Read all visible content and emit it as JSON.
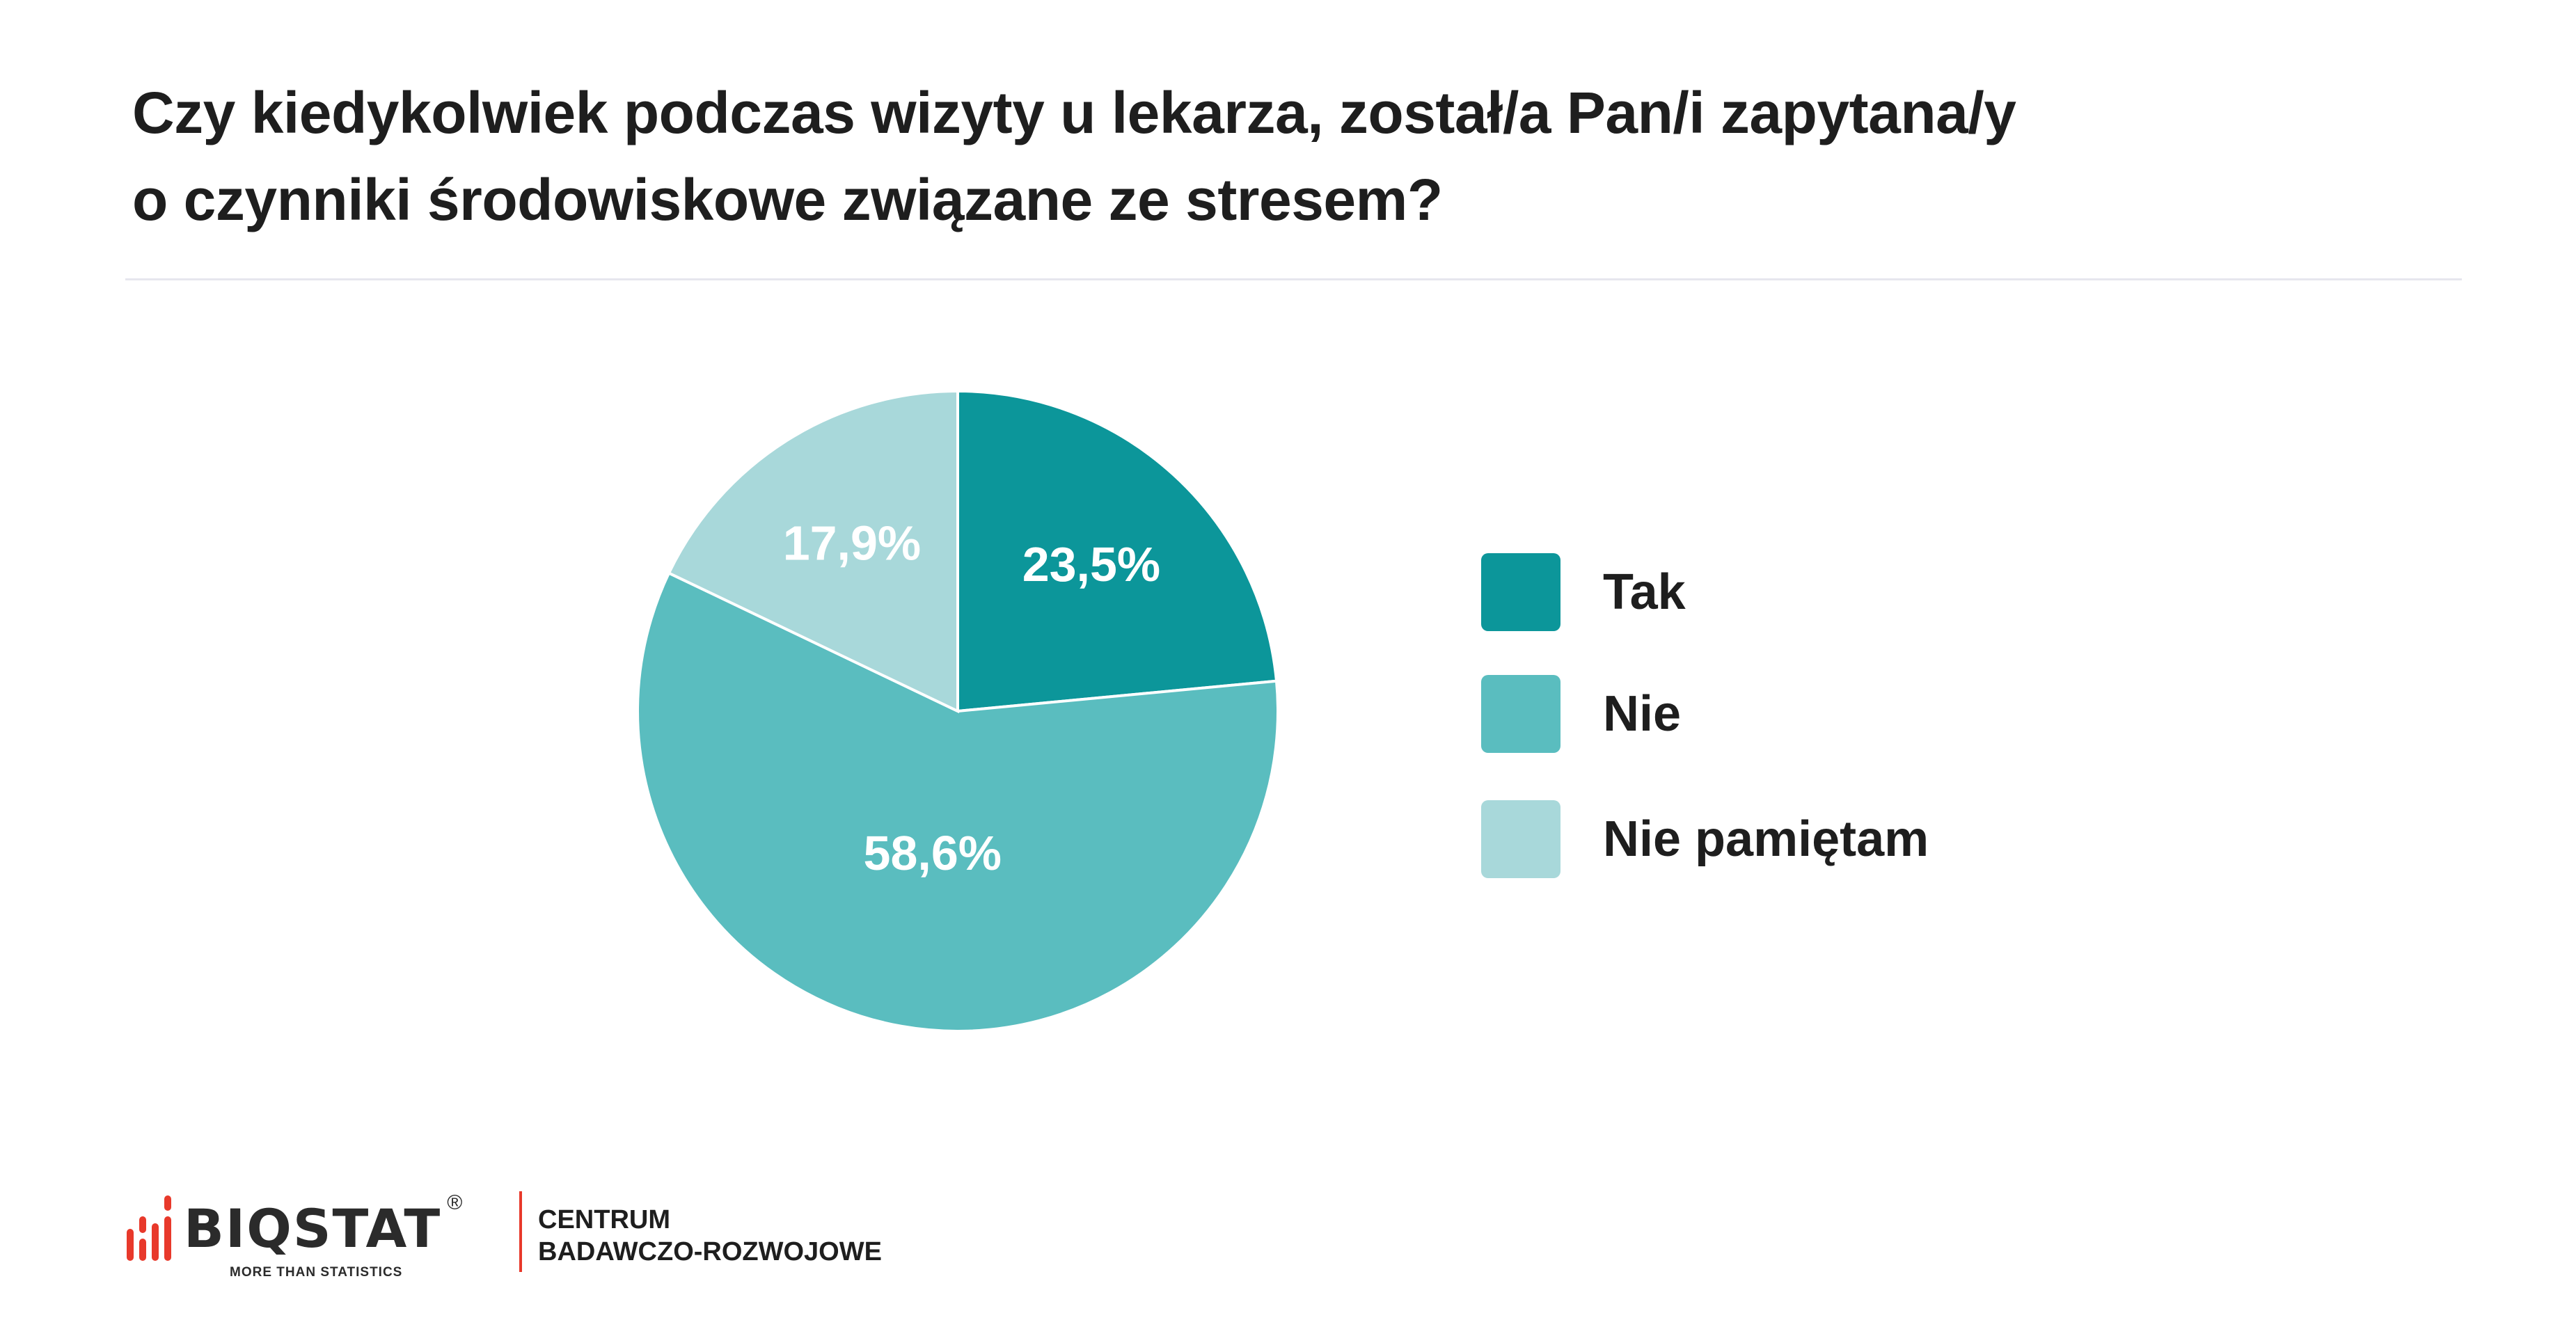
{
  "chart_data": {
    "type": "pie",
    "title": "Czy kiedykolwiek podczas wizyty u lekarza, został/a Pan/i zapytana/y o czynniki środowiskowe związane ze stresem?",
    "title_lines": [
      "Czy kiedykolwiek podczas wizyty u lekarza, został/a Pan/i zapytana/y",
      "o czynniki środowiskowe związane ze stresem?"
    ],
    "categories": [
      "Tak",
      "Nie",
      "Nie pamiętam"
    ],
    "values": [
      23.5,
      58.6,
      17.9
    ],
    "data_labels": [
      "23,5%",
      "58,6%",
      "17,9%"
    ],
    "colors": [
      "#0c969a",
      "#5abdbf",
      "#a8d8da"
    ],
    "start_angle": "12 o'clock",
    "direction": "clockwise",
    "legend_position": "right"
  },
  "footer": {
    "logo_text": "BIQSTAT",
    "logo_registered": "®",
    "logo_tagline": "MORE THAN STATISTICS",
    "brand_color": "#e8392b",
    "centrum_line1": "CENTRUM",
    "centrum_line2": "BADAWCZO-ROZWOJOWE"
  }
}
